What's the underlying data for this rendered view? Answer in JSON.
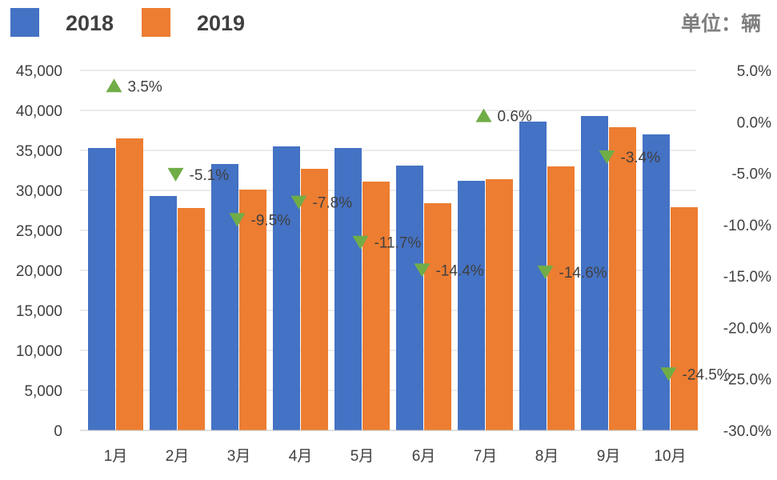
{
  "chart_data": {
    "type": "bar",
    "categories": [
      "1月",
      "2月",
      "3月",
      "4月",
      "5月",
      "6月",
      "7月",
      "8月",
      "9月",
      "10月"
    ],
    "series": [
      {
        "name": "2018",
        "color": "#4472C4",
        "values": [
          35300,
          29300,
          33300,
          35500,
          35300,
          33100,
          31200,
          38600,
          39300,
          37000
        ]
      },
      {
        "name": "2019",
        "color": "#ED7D31",
        "values": [
          36500,
          27800,
          30100,
          32700,
          31100,
          28400,
          31400,
          33000,
          37900,
          27900
        ]
      }
    ],
    "growth": {
      "values": [
        3.5,
        -5.1,
        -9.5,
        -7.8,
        -11.7,
        -14.4,
        0.6,
        -14.6,
        -3.4,
        -24.5
      ],
      "labels": [
        "3.5%",
        "-5.1%",
        "-9.5%",
        "-7.8%",
        "-11.7%",
        "-14.4%",
        "0.6%",
        "-14.6%",
        "-3.4%",
        "-24.5%"
      ],
      "up_color": "#70AD47",
      "down_color": "#70AD47"
    },
    "unit_label": "单位：辆",
    "y_left": {
      "ylim": [
        0,
        45000
      ],
      "ticks": [
        0,
        5000,
        10000,
        15000,
        20000,
        25000,
        30000,
        35000,
        40000,
        45000
      ],
      "tick_labels": [
        "0",
        "5,000",
        "10,000",
        "15,000",
        "20,000",
        "25,000",
        "30,000",
        "35,000",
        "40,000",
        "45,000"
      ]
    },
    "y_right": {
      "ylim": [
        -30,
        5
      ],
      "ticks": [
        5,
        0,
        -5,
        -10,
        -15,
        -20,
        -25,
        -30
      ],
      "tick_labels": [
        "5.0%",
        "0.0%",
        "-5.0%",
        "-10.0%",
        "-15.0%",
        "-20.0%",
        "-25.0%",
        "-30.0%"
      ]
    },
    "grid": true,
    "legend_position": "top-left"
  }
}
